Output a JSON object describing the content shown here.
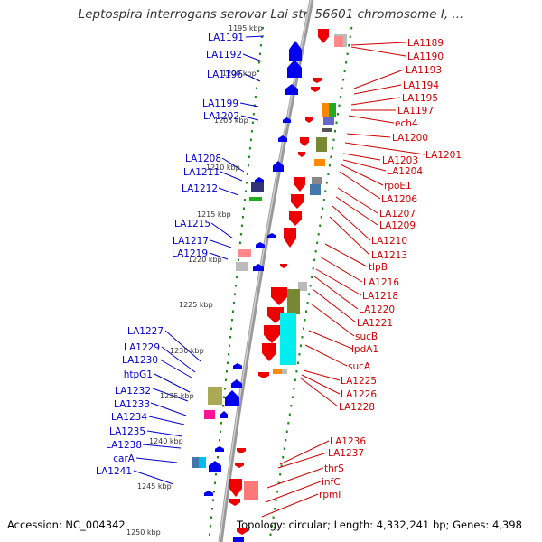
{
  "title": "Leptospira interrogans serovar Lai str. 56601 chromosome I, ...",
  "footer": {
    "accession": "Accession: NC_004342",
    "topology": "Topology: circular; Length: 4,332,241 bp; Genes: 4,398"
  },
  "colors": {
    "left_label": "#0000cc",
    "right_label": "#cc0000",
    "tick_dots": "#1a8a1a",
    "backbone": "#888888"
  },
  "scale_ticks": [
    "1195 kbp",
    "1200 kbp",
    "1205 kbp",
    "1210 kbp",
    "1215 kbp",
    "1220 kbp",
    "1225 kbp",
    "1230 kbp",
    "1235 kbp",
    "1240 kbp",
    "1245 kbp",
    "1250 kbp"
  ],
  "left_genes": [
    "LA1191",
    "LA1192",
    "LA1196",
    "LA1199",
    "LA1202",
    "LA1208",
    "LA1211",
    "LA1212",
    "LA1215",
    "LA1217",
    "LA1219",
    "LA1227",
    "LA1229",
    "LA1230",
    "htpG1",
    "LA1232",
    "LA1233",
    "LA1234",
    "LA1235",
    "LA1238",
    "carA",
    "LA1241"
  ],
  "right_genes": [
    "LA1189",
    "LA1190",
    "LA1193",
    "LA1194",
    "LA1195",
    "LA1197",
    "ech4",
    "LA1200",
    "LA1201",
    "LA1203",
    "LA1204",
    "rpoE1",
    "LA1206",
    "LA1207",
    "LA1209",
    "LA1210",
    "LA1213",
    "tlpB",
    "LA1216",
    "LA1218",
    "LA1220",
    "LA1221",
    "sucB",
    "lpdA1",
    "sucA",
    "LA1225",
    "LA1226",
    "LA1228",
    "LA1236",
    "LA1237",
    "thrS",
    "infC",
    "rpmI"
  ]
}
